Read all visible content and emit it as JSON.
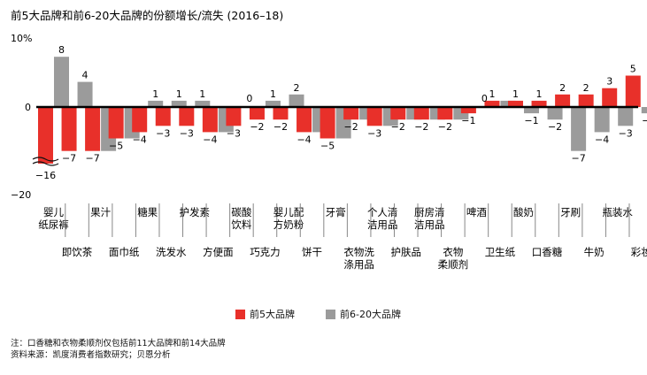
{
  "chart_data": {
    "type": "bar",
    "title": "前5大品牌和前6-20大品牌的份额增长/流失 (2016–18)",
    "y_tick_labels": [
      "10%",
      "0",
      "−20"
    ],
    "ylim": [
      -20,
      10
    ],
    "axis_break": true,
    "colors": {
      "top5": "#e8302a",
      "top6_20": "#9b9b9b",
      "axis": "#000000"
    },
    "categories": [
      "婴儿纸尿裤",
      "即饮茶",
      "果汁",
      "面巾纸",
      "糖果",
      "洗发水",
      "护发素",
      "方便面",
      "碳酸饮料",
      "巧克力",
      "婴儿配方奶粉",
      "饼干",
      "牙膏",
      "衣物洗涤用品",
      "个人清洁用品",
      "护肤品",
      "厨房清洁用品",
      "衣物柔顺剂",
      "啤酒",
      "卫生纸",
      "酸奶",
      "口香糖",
      "牙刷",
      "牛奶",
      "瓶装水",
      "彩妆"
    ],
    "category_lines": [
      [
        "婴儿",
        "纸尿裤"
      ],
      [
        "即饮茶"
      ],
      [
        "果汁"
      ],
      [
        "面巾纸"
      ],
      [
        "糖果"
      ],
      [
        "洗发水"
      ],
      [
        "护发素"
      ],
      [
        "方便面"
      ],
      [
        "碳酸",
        "饮料"
      ],
      [
        "巧克力"
      ],
      [
        "婴儿配",
        "方奶粉"
      ],
      [
        "饼干"
      ],
      [
        "牙膏"
      ],
      [
        "衣物洗",
        "涤用品"
      ],
      [
        "个人清",
        "洁用品"
      ],
      [
        "护肤品"
      ],
      [
        "厨房清",
        "洁用品"
      ],
      [
        "衣物",
        "柔顺剂"
      ],
      [
        "啤酒"
      ],
      [
        "卫生纸"
      ],
      [
        "酸奶"
      ],
      [
        "口香糖"
      ],
      [
        "牙刷"
      ],
      [
        "牛奶"
      ],
      [
        "瓶装水"
      ],
      [
        "彩妆"
      ]
    ],
    "series": [
      {
        "name": "前5大品牌",
        "values": [
          -16,
          -7,
          -7,
          -5,
          -4,
          -3,
          -3,
          -4,
          -3,
          -2,
          -2,
          -4,
          -5,
          -2,
          -3,
          -2,
          -2,
          -2,
          -1,
          1,
          1,
          1,
          2,
          2,
          3,
          5
        ]
      },
      {
        "name": "前6-20大品牌",
        "values": [
          8,
          4,
          -7,
          -5,
          1,
          1,
          1,
          -4,
          0,
          1,
          2,
          -4,
          -5,
          -2,
          -3,
          -2,
          -2,
          -2,
          0,
          1,
          -1,
          -2,
          -7,
          -4,
          -3,
          -1
        ]
      }
    ],
    "bar_labels": [
      [
        "−16",
        "8"
      ],
      [
        "−7",
        "4"
      ],
      [
        "−7",
        ""
      ],
      [
        "−5",
        ""
      ],
      [
        "−4",
        "1"
      ],
      [
        "−3",
        "1"
      ],
      [
        "−3",
        "1"
      ],
      [
        "−4",
        ""
      ],
      [
        "−3",
        "0"
      ],
      [
        "−2",
        "1"
      ],
      [
        "−2",
        "2"
      ],
      [
        "−4",
        ""
      ],
      [
        "−5",
        ""
      ],
      [
        "−2",
        ""
      ],
      [
        "−3",
        ""
      ],
      [
        "−2",
        ""
      ],
      [
        "−2",
        ""
      ],
      [
        "−2",
        ""
      ],
      [
        "−1",
        "0"
      ],
      [
        "1",
        ""
      ],
      [
        "1",
        "−1"
      ],
      [
        "1",
        "−2"
      ],
      [
        "2",
        "−7"
      ],
      [
        "2",
        "−4"
      ],
      [
        "3",
        "−3"
      ],
      [
        "5",
        "−1"
      ]
    ]
  },
  "legend": {
    "items": [
      {
        "label": "前5大品牌"
      },
      {
        "label": "前6-20大品牌"
      }
    ]
  },
  "footnotes": {
    "note": "注：口香糖和衣物柔顺剂仅包括前11大品牌和前14大品牌",
    "source": "资料来源：凯度消费者指数研究；贝恩分析"
  }
}
